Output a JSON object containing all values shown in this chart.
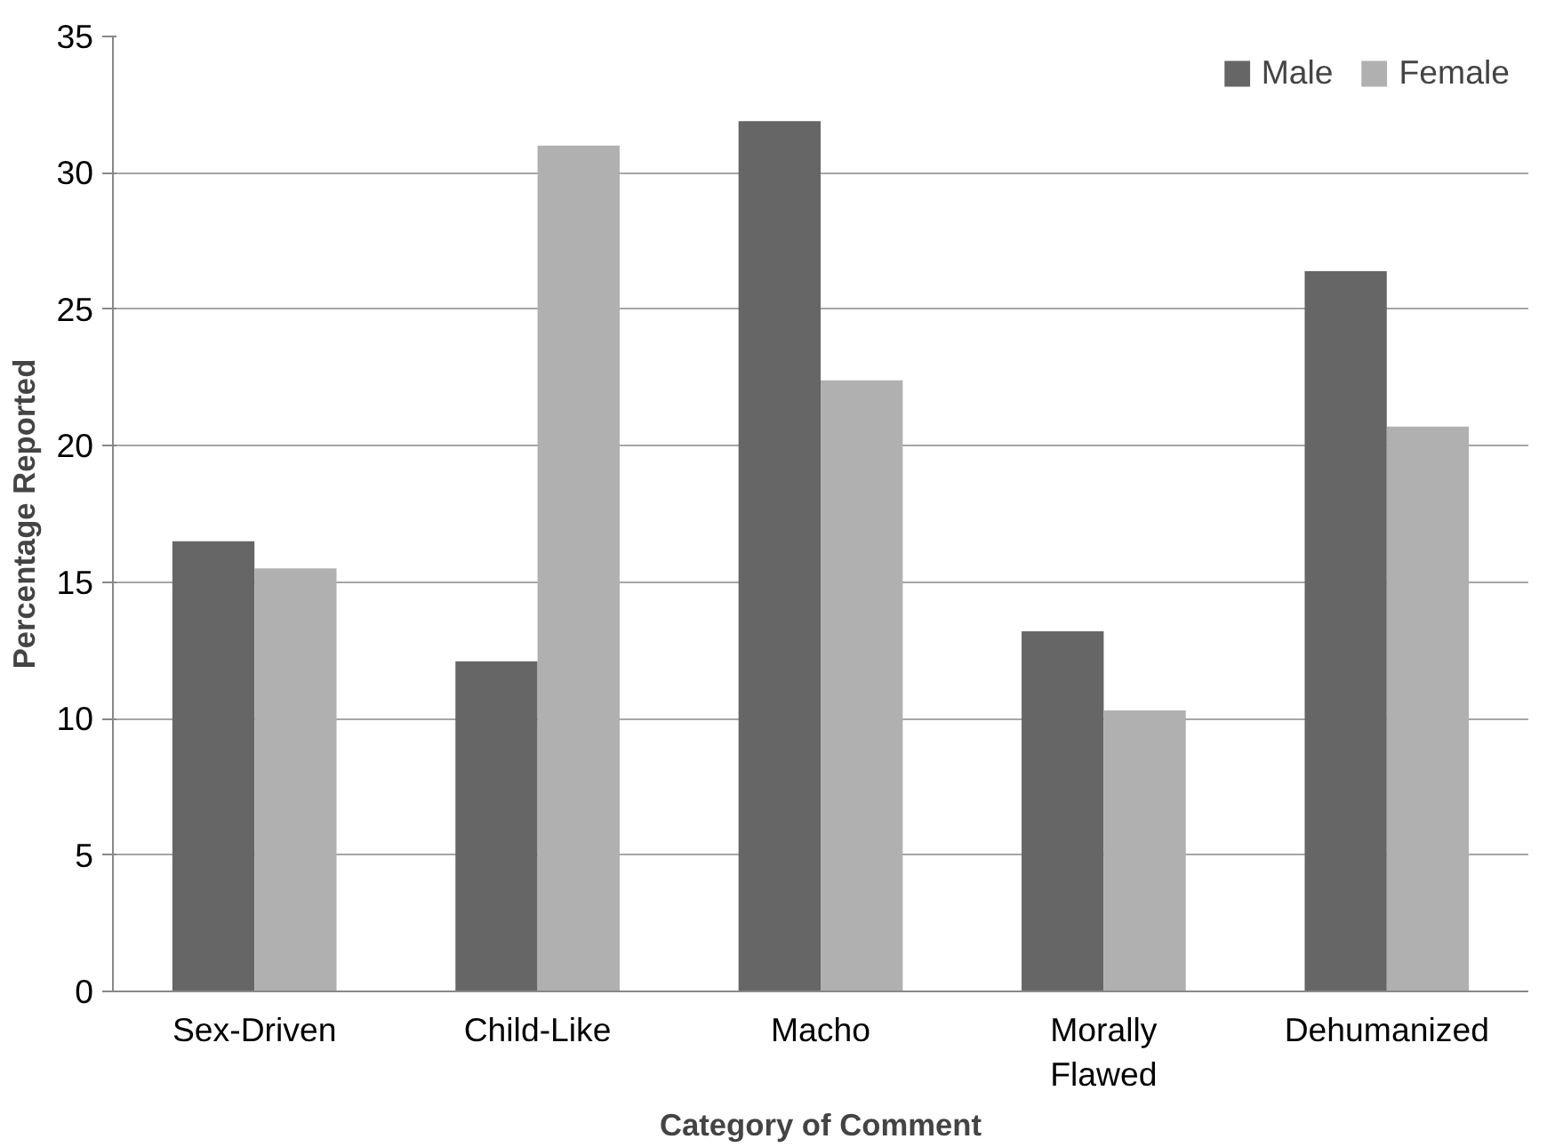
{
  "chart_data": {
    "type": "bar",
    "xlabel": "Category of Comment",
    "ylabel": "Percentage Reported",
    "categories": [
      "Sex-Driven",
      "Child-Like",
      "Macho",
      "Morally\nFlawed",
      "Dehumanized"
    ],
    "series": [
      {
        "name": "Male",
        "color": "#666666",
        "values": [
          16.5,
          12.1,
          31.9,
          13.2,
          26.4
        ]
      },
      {
        "name": "Female",
        "color": "#b0b0b0",
        "values": [
          15.5,
          31.0,
          22.4,
          10.3,
          20.7
        ]
      }
    ],
    "ylim": [
      0,
      35
    ],
    "yticks": [
      0,
      5,
      10,
      15,
      20,
      25,
      30,
      35
    ],
    "grid": "y",
    "legend": "top right"
  }
}
